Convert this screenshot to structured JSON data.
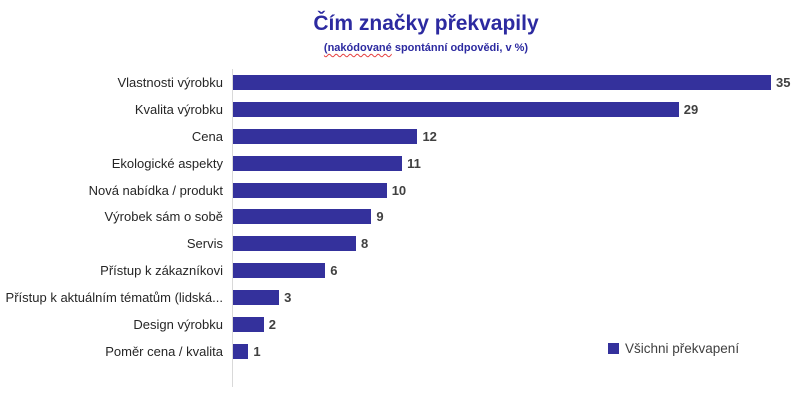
{
  "chart_data": {
    "type": "bar",
    "orientation": "horizontal",
    "title": "Čím značky překvapily",
    "subtitle": "(nakódované spontánní odpovědi, v %)",
    "categories": [
      "Vlastnosti výrobku",
      "Kvalita výrobku",
      "Cena",
      "Ekologické aspekty",
      "Nová nabídka / produkt",
      "Výrobek sám o sobě",
      "Servis",
      "Přístup k zákazníkovi",
      "Přístup k aktuálním tématům (lidská...",
      "Design výrobku",
      "Poměr cena / kvalita"
    ],
    "values": [
      35,
      29,
      12,
      11,
      10,
      9,
      8,
      6,
      3,
      2,
      1
    ],
    "series_name": "Všichni překvapení",
    "legend": "Všichni překvapení",
    "legend_position": "bottom-right",
    "xlim": [
      0,
      35
    ],
    "grid": false,
    "data_labels": true
  },
  "subtitle_parts": {
    "marked": "(nakódované",
    "rest": " spontánní odpovědi, v %)"
  },
  "colors": {
    "bar": "#34319C",
    "title": "#2C2AA0",
    "axis_line": "#D9D9D9",
    "category_label": "#262626",
    "value_label": "#404040",
    "legend_text": "#3F3F3F",
    "squiggle": "#E53E3E"
  }
}
